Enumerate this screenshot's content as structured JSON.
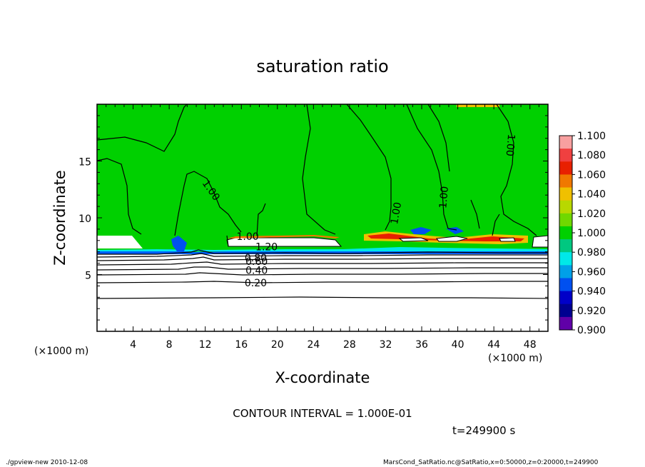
{
  "chart_data": {
    "type": "contour",
    "title": "saturation ratio",
    "xlabel": "X-coordinate",
    "ylabel": "Z-coordinate",
    "x_unit": "(×1000 m)",
    "z_unit": "(×1000 m)",
    "xlim": [
      0,
      50
    ],
    "ylim": [
      0,
      20
    ],
    "x_ticks": [
      4,
      8,
      12,
      16,
      20,
      24,
      28,
      32,
      36,
      40,
      44,
      48
    ],
    "y_ticks": [
      5,
      10,
      15
    ],
    "contour_interval_text": "CONTOUR INTERVAL = 1.000E-01",
    "time_text": "t=249900 s",
    "colorbar": {
      "levels": [
        "1.100",
        "1.080",
        "1.060",
        "1.040",
        "1.020",
        "1.000",
        "0.980",
        "0.960",
        "0.940",
        "0.920",
        "0.900"
      ],
      "colors": [
        "#f8a0a0",
        "#f04040",
        "#e82000",
        "#f07800",
        "#f0c000",
        "#b8d800",
        "#70d800",
        "#00d000",
        "#00c880",
        "#00e8e8",
        "#00a0e8",
        "#0050f0",
        "#0000c8",
        "#000090",
        "#6000a8"
      ]
    },
    "contour_labels": [
      {
        "text": "1.00",
        "x": 12.6,
        "z": 12.4,
        "rot": 55
      },
      {
        "text": "1.00",
        "x": 33.2,
        "z": 10.4,
        "rot": -80
      },
      {
        "text": "1.00",
        "x": 38.5,
        "z": 11.8,
        "rot": -85
      },
      {
        "text": "1.00",
        "x": 45.8,
        "z": 16.4,
        "rot": 95
      },
      {
        "text": "1.00",
        "x": 16.7,
        "z": 8.3,
        "rot": 0
      },
      {
        "text": "1.20",
        "x": 18.8,
        "z": 7.4,
        "rot": 0
      },
      {
        "text": "0.80",
        "x": 17.6,
        "z": 6.4,
        "rot": 0
      },
      {
        "text": "0.60",
        "x": 17.7,
        "z": 6.1,
        "rot": 0
      },
      {
        "text": "0.40",
        "x": 17.7,
        "z": 5.3,
        "rot": 0
      },
      {
        "text": "0.20",
        "x": 17.6,
        "z": 4.2,
        "rot": 0
      }
    ]
  },
  "footer": {
    "left": "./gpview-new   2010-12-08",
    "right": "MarsCond_SatRatio.nc@SatRatio,x=0:50000,z=0:20000,t=249900"
  }
}
